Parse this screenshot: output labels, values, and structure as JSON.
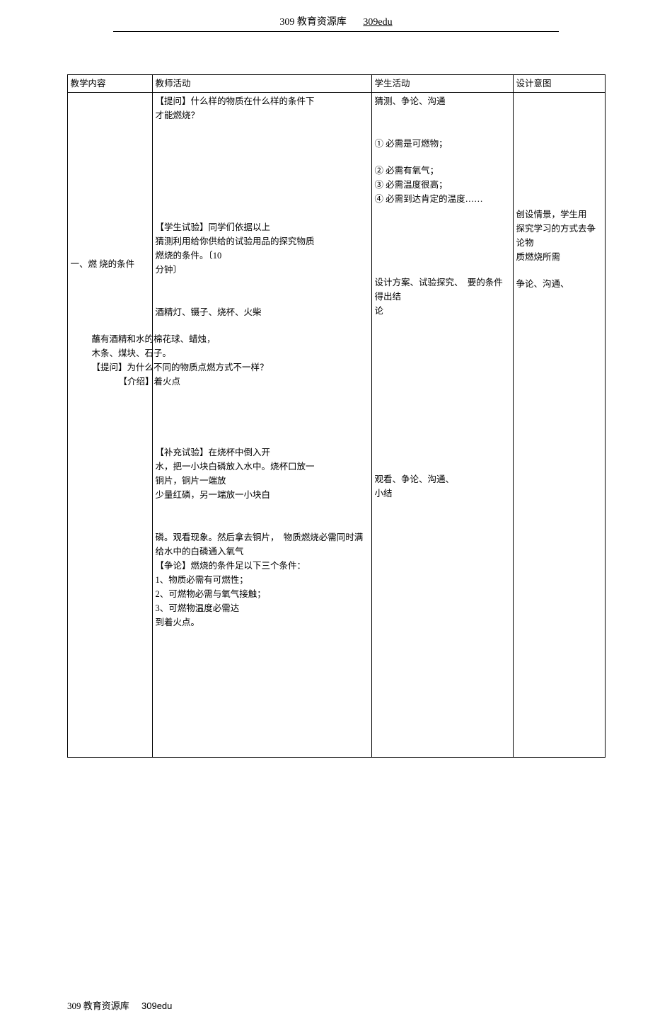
{
  "header": {
    "title": "309 教育资源库",
    "code": "309edu"
  },
  "table": {
    "head": {
      "c1": "教学内容",
      "c2": "教师活动",
      "c3": "学生活动",
      "c4": "设计意图"
    },
    "row": {
      "c1_label": "一、燃 烧的条件",
      "c2_q1_line1": "【提问】什么样的物质在什么样的条件下",
      "c2_q1_line2": "才能燃烧？",
      "c2_exp1_line1": "【学生试验】同学们依据以上",
      "c2_exp1_line2": "猜测利用给你供给的试验用品的探究物质",
      "c2_exp1_line3": "燃烧的条件。〔10",
      "c2_exp1_line4": "分钟〕",
      "c2_items_line1": "酒精灯、镊子、烧杯、火柴",
      "c2_items_line2": "蘸有酒精和水的棉花球、蜡烛，",
      "c2_items_line3": "木条、煤块、石子。",
      "c2_q2": "【提问】为什么不同的物质点燃方式不一样？",
      "c2_intro": "【介绍】着火点",
      "c2_exp2_line1": "【补充试验】在烧杯中倒入开",
      "c2_exp2_line2": "水，把一小块白磷放入水中。烧杯口放一",
      "c2_exp2_line3": "铜片，铜片一端放",
      "c2_exp2_line4": "少量红磷，另一端放一小块白",
      "c2_exp2_line5": "磷。观看现象。然后拿去铜片，",
      "c2_exp2_line6": "给水中的白磷通入氧气",
      "c2_concl_title": "【争论】燃烧的条件足以下三个条件：",
      "c2_concl_1_num": "1",
      "c2_concl_1": "、物质必需有可燃性；",
      "c2_concl_2_num": "2",
      "c2_concl_2": "、可燃物必需与氧气接触；",
      "c2_concl_3_num": "3",
      "c2_concl_3": "、可燃物温度必需达",
      "c2_concl_3b": "到着火点。",
      "c3_guess": "猜测、争论、沟通",
      "c3_g1": "①  必需是可燃物；",
      "c3_g2": "②  必需有氧气；",
      "c3_g3": "③ 必需温度很高；",
      "c3_g4": "④ 必需到达肯定的温度……",
      "c3_plan_line1": "设计方案、试验探究、",
      "c3_plan_line2": "得出结",
      "c3_plan_line3": "论",
      "c3_obs_line1": "观看、争论、沟通、",
      "c3_obs_line2": "小结",
      "c3_concl_frag": "物质燃烧必需同时满",
      "c4_line1": "创设情景，学生用",
      "c4_line2": "探究学习的方式去争论物",
      "c4_line3": "质燃烧所需",
      "c4_line4": "要的条件",
      "c4_frag": "争论、沟通、"
    }
  },
  "footer": {
    "title": "309 教育资源库",
    "code": "309edu"
  }
}
